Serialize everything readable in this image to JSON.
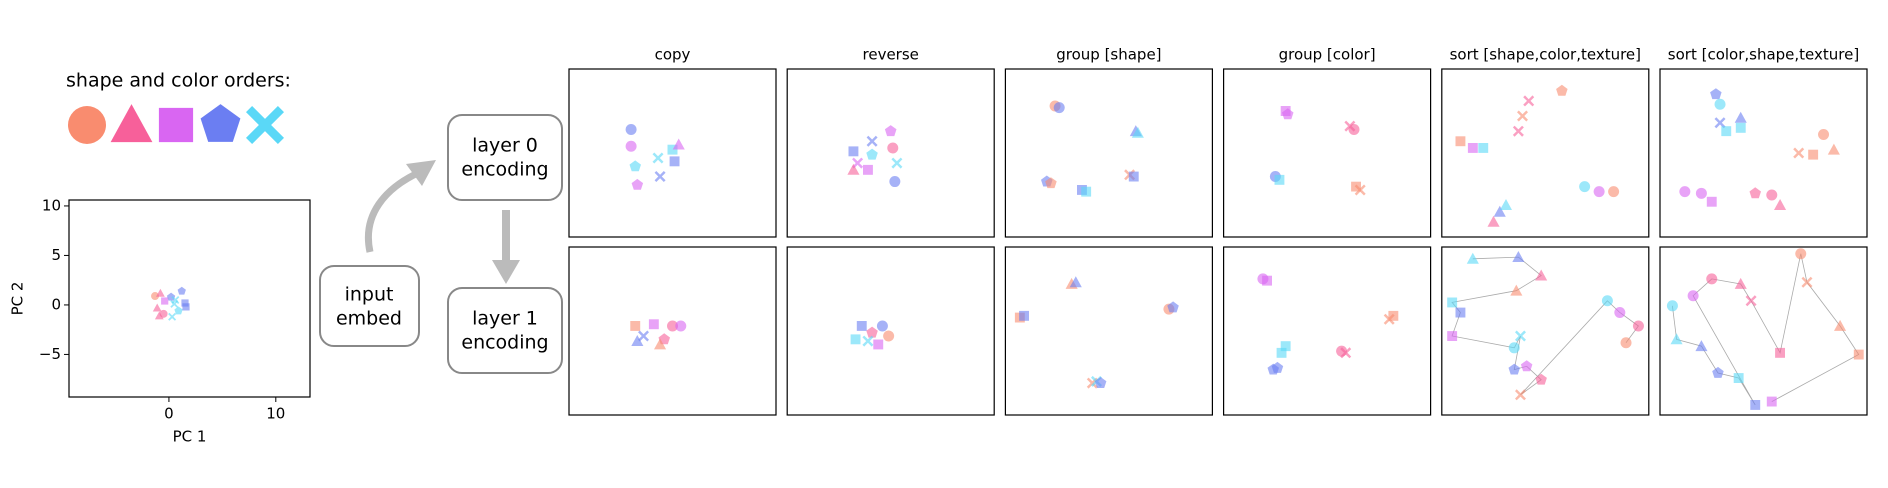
{
  "legend": {
    "title": "shape and color orders:",
    "shapes": [
      "circle",
      "triangle",
      "square",
      "pentagon",
      "cross"
    ],
    "colors": [
      "#f98c6f",
      "#f7609a",
      "#d966f2",
      "#6b7ef2",
      "#5ad8f7"
    ]
  },
  "diagram": {
    "input": [
      "input",
      "embed"
    ],
    "layer0": [
      "layer 0",
      "encoding"
    ],
    "layer1": [
      "layer 1",
      "encoding"
    ]
  },
  "chart_data": [
    {
      "type": "scatter",
      "xlabel": "PC 1",
      "ylabel": "PC 2",
      "xlim": [
        -9.35,
        13.2
      ],
      "ylim": [
        -9.3,
        10.6
      ],
      "xticks": [
        0,
        10
      ],
      "yticks": [
        {
          "value": -5,
          "label": "−5"
        },
        0,
        5,
        10
      ],
      "x": [
        -1.3,
        -0.8,
        -0.4,
        0.2,
        0.6,
        1.2,
        1.5,
        -1.1,
        -0.5,
        0.3,
        0.9,
        1.6,
        -0.9,
        0.5
      ],
      "y": [
        0.9,
        1.2,
        0.4,
        0.8,
        0.5,
        1.4,
        0.2,
        -0.3,
        -0.9,
        -1.2,
        -0.6,
        -0.2,
        -1.1,
        0.1
      ],
      "markers": [
        "circle",
        "triangle",
        "square",
        "pentagon",
        "cross",
        "pentagon",
        "square",
        "triangle",
        "circle",
        "cross",
        "pentagon",
        "square",
        "triangle",
        "cross"
      ],
      "colors": [
        "#f98c6f",
        "#f7609a",
        "#d966f2",
        "#6b7ef2",
        "#5ad8f7",
        "#6b7ef2",
        "#6b7ef2",
        "#f7609a",
        "#f7609a",
        "#5ad8f7",
        "#5ad8f7",
        "#6b7ef2",
        "#f7609a",
        "#5ad8f7"
      ]
    },
    {
      "type": "scatter",
      "title": "copy",
      "xlim": [
        0,
        100
      ],
      "ylim": [
        0,
        100
      ],
      "x": [
        30,
        30,
        32,
        33,
        43,
        44,
        50,
        51,
        53
      ],
      "y": [
        64,
        54,
        42,
        31,
        47,
        36,
        52,
        45,
        55
      ],
      "markers": [
        "circle",
        "circle",
        "pentagon",
        "pentagon",
        "cross",
        "cross",
        "square",
        "square",
        "triangle"
      ],
      "colors": [
        "#6b7ef2",
        "#d966f2",
        "#5ad8f7",
        "#d966f2",
        "#5ad8f7",
        "#6b7ef2",
        "#5ad8f7",
        "#6b7ef2",
        "#d966f2"
      ]
    },
    {
      "type": "scatter",
      "title": "reverse",
      "xlim": [
        0,
        100
      ],
      "ylim": [
        0,
        100
      ],
      "x": [
        32,
        34,
        41,
        41,
        50,
        51,
        53,
        52,
        32,
        39
      ],
      "y": [
        51,
        44,
        57,
        49,
        63,
        53,
        44,
        33,
        40,
        40
      ],
      "markers": [
        "square",
        "cross",
        "cross",
        "pentagon",
        "pentagon",
        "circle",
        "cross",
        "circle",
        "triangle",
        "square"
      ],
      "colors": [
        "#6b7ef2",
        "#d966f2",
        "#6b7ef2",
        "#5ad8f7",
        "#d966f2",
        "#f7609a",
        "#5ad8f7",
        "#6b7ef2",
        "#f7609a",
        "#d966f2"
      ]
    },
    {
      "type": "scatter",
      "title": "group [shape]",
      "xlim": [
        0,
        100
      ],
      "ylim": [
        0,
        100
      ],
      "x": [
        24,
        26,
        63,
        64,
        20,
        22,
        37,
        39,
        60,
        62
      ],
      "y": [
        78,
        77,
        63,
        62,
        33,
        32,
        28,
        27,
        37,
        36
      ],
      "markers": [
        "circle",
        "circle",
        "triangle",
        "triangle",
        "pentagon",
        "pentagon",
        "square",
        "square",
        "cross",
        "square"
      ],
      "colors": [
        "#f98c6f",
        "#6b7ef2",
        "#6b7ef2",
        "#5ad8f7",
        "#6b7ef2",
        "#f98c6f",
        "#6b7ef2",
        "#5ad8f7",
        "#f98c6f",
        "#6b7ef2"
      ]
    },
    {
      "type": "scatter",
      "title": "group [color]",
      "xlim": [
        0,
        100
      ],
      "ylim": [
        0,
        100
      ],
      "x": [
        30,
        31,
        61,
        63,
        25,
        27,
        64,
        66
      ],
      "y": [
        75,
        73,
        66,
        64,
        36,
        34,
        30,
        28
      ],
      "markers": [
        "square",
        "pentagon",
        "cross",
        "circle",
        "circle",
        "square",
        "square",
        "cross"
      ],
      "colors": [
        "#d966f2",
        "#d966f2",
        "#f7609a",
        "#f7609a",
        "#6b7ef2",
        "#5ad8f7",
        "#f98c6f",
        "#f98c6f"
      ]
    },
    {
      "type": "scatter",
      "title": "sort [shape,color,texture]",
      "xlim": [
        0,
        100
      ],
      "ylim": [
        0,
        100
      ],
      "x": [
        9,
        15,
        20,
        37,
        39,
        42,
        58,
        69,
        76,
        83,
        25,
        28,
        31
      ],
      "y": [
        57,
        53,
        53,
        63,
        72,
        81,
        87,
        30,
        27,
        27,
        9,
        15,
        19
      ],
      "markers": [
        "square",
        "square",
        "square",
        "cross",
        "cross",
        "cross",
        "pentagon",
        "circle",
        "circle",
        "circle",
        "triangle",
        "triangle",
        "triangle"
      ],
      "colors": [
        "#f98c6f",
        "#d966f2",
        "#5ad8f7",
        "#f7609a",
        "#f98c6f",
        "#f7609a",
        "#f98c6f",
        "#5ad8f7",
        "#d966f2",
        "#f98c6f",
        "#f7609a",
        "#6b7ef2",
        "#5ad8f7"
      ]
    },
    {
      "type": "scatter",
      "title": "sort [color,shape,texture]",
      "xlim": [
        0,
        100
      ],
      "ylim": [
        0,
        100
      ],
      "x": [
        27,
        29,
        29,
        32,
        39,
        39,
        79,
        84,
        67,
        74,
        12,
        20,
        46,
        54,
        58,
        25
      ],
      "y": [
        85,
        79,
        68,
        63,
        71,
        65,
        61,
        52,
        50,
        49,
        27,
        26,
        26,
        25,
        19,
        21
      ],
      "markers": [
        "pentagon",
        "circle",
        "cross",
        "square",
        "triangle",
        "square",
        "circle",
        "triangle",
        "cross",
        "square",
        "circle",
        "circle",
        "pentagon",
        "circle",
        "triangle",
        "square"
      ],
      "colors": [
        "#6b7ef2",
        "#5ad8f7",
        "#6b7ef2",
        "#5ad8f7",
        "#6b7ef2",
        "#5ad8f7",
        "#f98c6f",
        "#f98c6f",
        "#f98c6f",
        "#f98c6f",
        "#d966f2",
        "#d966f2",
        "#f7609a",
        "#f7609a",
        "#f7609a",
        "#d966f2"
      ]
    },
    {
      "type": "scatter",
      "xlim": [
        0,
        100
      ],
      "ylim": [
        0,
        100
      ],
      "x": [
        32,
        36,
        41,
        46,
        50,
        54,
        33,
        44
      ],
      "y": [
        53,
        47,
        54,
        45,
        53,
        53,
        44,
        42
      ],
      "markers": [
        "square",
        "cross",
        "square",
        "pentagon",
        "circle",
        "circle",
        "triangle",
        "triangle"
      ],
      "colors": [
        "#f98c6f",
        "#6b7ef2",
        "#d966f2",
        "#f7609a",
        "#f7609a",
        "#d966f2",
        "#6b7ef2",
        "#f98c6f"
      ]
    },
    {
      "type": "scatter",
      "xlim": [
        0,
        100
      ],
      "ylim": [
        0,
        100
      ],
      "x": [
        36,
        41,
        46,
        49,
        39,
        44,
        33
      ],
      "y": [
        53,
        49,
        53,
        47,
        44,
        42,
        45
      ],
      "markers": [
        "square",
        "pentagon",
        "circle",
        "circle",
        "cross",
        "square",
        "square"
      ],
      "colors": [
        "#6b7ef2",
        "#f7609a",
        "#6b7ef2",
        "#f98c6f",
        "#5ad8f7",
        "#d966f2",
        "#5ad8f7"
      ]
    },
    {
      "type": "scatter",
      "xlim": [
        0,
        100
      ],
      "ylim": [
        0,
        100
      ],
      "x": [
        7,
        9,
        32,
        34,
        79,
        81,
        42,
        44,
        46
      ],
      "y": [
        58,
        59,
        78,
        79,
        63,
        64,
        19,
        20,
        19
      ],
      "markers": [
        "square",
        "square",
        "triangle",
        "triangle",
        "circle",
        "pentagon",
        "cross",
        "cross",
        "pentagon"
      ],
      "colors": [
        "#f98c6f",
        "#6b7ef2",
        "#f98c6f",
        "#6b7ef2",
        "#f98c6f",
        "#6b7ef2",
        "#f98c6f",
        "#5ad8f7",
        "#6b7ef2"
      ]
    },
    {
      "type": "scatter",
      "xlim": [
        0,
        100
      ],
      "ylim": [
        0,
        100
      ],
      "x": [
        19,
        21,
        80,
        82,
        57,
        59,
        28,
        30,
        24,
        26
      ],
      "y": [
        81,
        80,
        57,
        59,
        38,
        37,
        37,
        41,
        27,
        28
      ],
      "markers": [
        "circle",
        "square",
        "cross",
        "square",
        "circle",
        "cross",
        "square",
        "square",
        "pentagon",
        "pentagon"
      ],
      "colors": [
        "#d966f2",
        "#d966f2",
        "#f98c6f",
        "#f98c6f",
        "#f7609a",
        "#f7609a",
        "#5ad8f7",
        "#5ad8f7",
        "#6b7ef2",
        "#6b7ef2"
      ]
    },
    {
      "type": "scatter",
      "connect": true,
      "xlim": [
        0,
        100
      ],
      "ylim": [
        0,
        100
      ],
      "x": [
        15,
        37,
        48,
        36,
        5,
        9,
        5,
        35,
        38,
        35,
        41,
        48,
        38,
        80,
        86,
        95,
        89
      ],
      "y": [
        93,
        94,
        83,
        74,
        67,
        61,
        47,
        40,
        47,
        27,
        29,
        21,
        12,
        68,
        61,
        53,
        43
      ],
      "markers": [
        "triangle",
        "triangle",
        "triangle",
        "triangle",
        "square",
        "square",
        "square",
        "circle",
        "cross",
        "pentagon",
        "pentagon",
        "pentagon",
        "cross",
        "circle",
        "circle",
        "circle",
        "circle"
      ],
      "colors": [
        "#5ad8f7",
        "#6b7ef2",
        "#f7609a",
        "#f98c6f",
        "#5ad8f7",
        "#6b7ef2",
        "#d966f2",
        "#5ad8f7",
        "#5ad8f7",
        "#6b7ef2",
        "#d966f2",
        "#f7609a",
        "#f98c6f",
        "#5ad8f7",
        "#d966f2",
        "#f7609a",
        "#f98c6f"
      ]
    },
    {
      "type": "scatter",
      "connect": true,
      "xlim": [
        0,
        100
      ],
      "ylim": [
        0,
        100
      ],
      "x": [
        6,
        8,
        20,
        28,
        38,
        46,
        16,
        25,
        39,
        44,
        58,
        68,
        71,
        87,
        96,
        54
      ],
      "y": [
        65,
        45,
        41,
        25,
        22,
        6,
        71,
        81,
        78,
        68,
        37,
        96,
        79,
        53,
        36,
        8
      ],
      "markers": [
        "circle",
        "triangle",
        "triangle",
        "pentagon",
        "square",
        "square",
        "circle",
        "circle",
        "triangle",
        "cross",
        "square",
        "circle",
        "cross",
        "triangle",
        "square",
        "square"
      ],
      "colors": [
        "#5ad8f7",
        "#5ad8f7",
        "#6b7ef2",
        "#6b7ef2",
        "#5ad8f7",
        "#6b7ef2",
        "#d966f2",
        "#f7609a",
        "#f7609a",
        "#f7609a",
        "#f7609a",
        "#f98c6f",
        "#f98c6f",
        "#f98c6f",
        "#f98c6f",
        "#d966f2"
      ]
    }
  ]
}
